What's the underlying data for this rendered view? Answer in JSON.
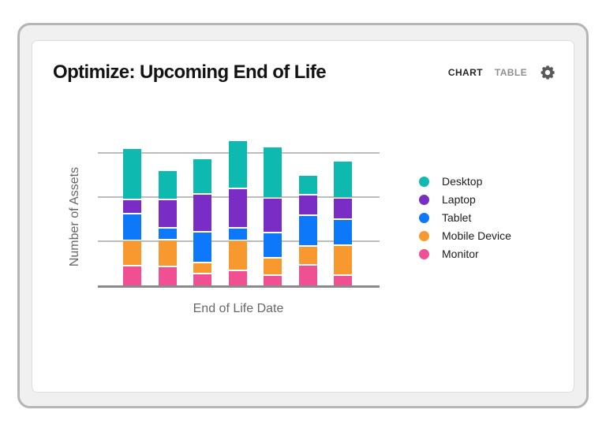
{
  "header": {
    "title": "Optimize: Upcoming End of Life",
    "tabs": [
      {
        "label": "CHART",
        "active": true
      },
      {
        "label": "TABLE",
        "active": false
      }
    ]
  },
  "chart_data": {
    "type": "bar",
    "stacked": true,
    "title": "Optimize: Upcoming End of Life",
    "xlabel": "End of Life Date",
    "ylabel": "Number of Assets",
    "categories": [
      "",
      "",
      "",
      "",
      "",
      "",
      ""
    ],
    "x_tick_labels_visible": false,
    "y_tick_labels_visible": false,
    "ylim": [
      0,
      38
    ],
    "gridline_values": [
      10,
      20,
      30
    ],
    "grid": true,
    "legend_position": "right",
    "series": [
      {
        "name": "Monitor",
        "color": "#F04F92",
        "values": [
          4.7,
          4.5,
          2.9,
          3.6,
          2.5,
          4.8,
          2.5
        ]
      },
      {
        "name": "Mobile Device",
        "color": "#F8992F",
        "values": [
          5.6,
          6.0,
          2.4,
          6.8,
          3.9,
          4.3,
          6.8
        ]
      },
      {
        "name": "Tablet",
        "color": "#0D78FA",
        "values": [
          6.1,
          2.7,
          7.0,
          2.8,
          5.7,
          7.0,
          5.9
        ]
      },
      {
        "name": "Laptop",
        "color": "#7A2DC5",
        "values": [
          3.3,
          6.5,
          8.5,
          8.9,
          7.9,
          4.6,
          4.7
        ]
      },
      {
        "name": "Desktop",
        "color": "#0EBAB0",
        "values": [
          11.6,
          6.5,
          8.1,
          11.0,
          11.5,
          4.5,
          8.4
        ]
      }
    ],
    "legend": [
      "Desktop",
      "Laptop",
      "Tablet",
      "Mobile Device",
      "Monitor"
    ]
  },
  "colors": {
    "frame_fill": "#f0f0f0",
    "frame_border": "#b5b5b5",
    "card_bg": "#ffffff",
    "gridline": "#bdbdbd",
    "axis_line": "#8a8a8a",
    "axis_label": "#65676a",
    "title_text": "#131313",
    "tab_active": "#262626",
    "tab_inactive": "#8f8f8f",
    "gear": "#58595b"
  }
}
